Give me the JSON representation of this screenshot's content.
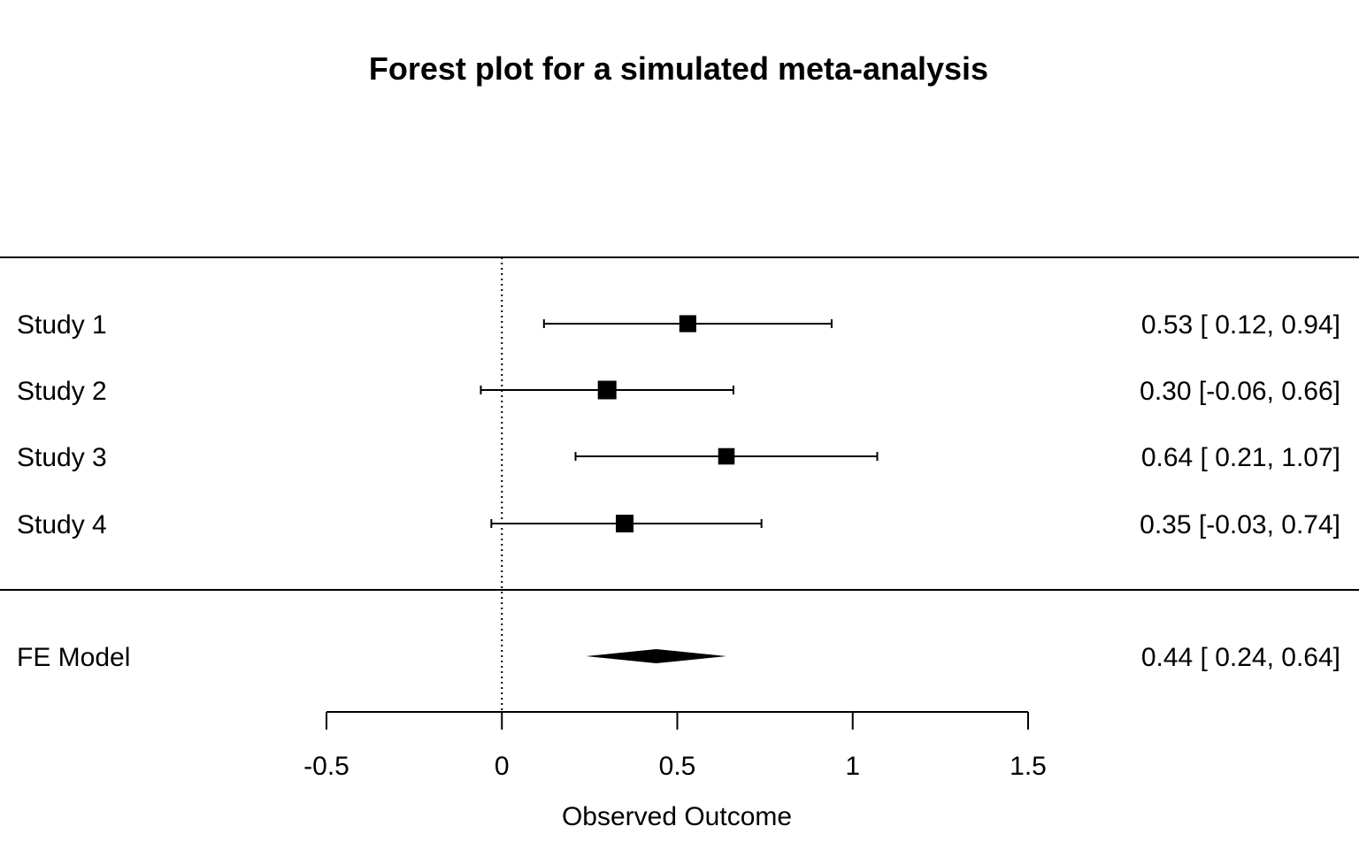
{
  "chart_data": {
    "type": "forest",
    "title": "Forest plot for a simulated meta-analysis",
    "xlabel": "Observed Outcome",
    "xlim": [
      -0.5,
      1.5
    ],
    "xticks": [
      -0.5,
      0,
      0.5,
      1,
      1.5
    ],
    "xtick_labels": [
      "-0.5",
      "0",
      "0.5",
      "1",
      "1.5"
    ],
    "reference_line": 0,
    "studies": [
      {
        "label": "Study 1",
        "estimate": 0.53,
        "ci_lower": 0.12,
        "ci_upper": 0.94,
        "text": "0.53 [ 0.12, 0.94]"
      },
      {
        "label": "Study 2",
        "estimate": 0.3,
        "ci_lower": -0.06,
        "ci_upper": 0.66,
        "text": "0.30 [-0.06, 0.66]"
      },
      {
        "label": "Study 3",
        "estimate": 0.64,
        "ci_lower": 0.21,
        "ci_upper": 1.07,
        "text": "0.64 [ 0.21, 1.07]"
      },
      {
        "label": "Study 4",
        "estimate": 0.35,
        "ci_lower": -0.03,
        "ci_upper": 0.74,
        "text": "0.35 [-0.03, 0.74]"
      }
    ],
    "summary": {
      "label": "FE Model",
      "estimate": 0.44,
      "ci_lower": 0.24,
      "ci_upper": 0.64,
      "text": "0.44 [ 0.24, 0.64]"
    }
  }
}
